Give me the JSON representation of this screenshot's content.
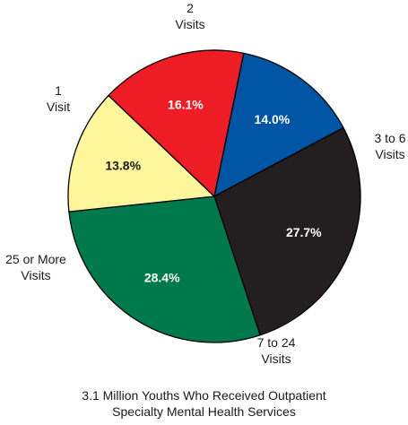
{
  "chart_data": {
    "type": "pie",
    "title": "",
    "slices": [
      {
        "label_lines": [
          "2",
          "Visits"
        ],
        "value": 14.0,
        "value_label": "14.0%",
        "color": "#0055a5",
        "text_color": "#ffffff"
      },
      {
        "label_lines": [
          "3 to 6",
          "Visits"
        ],
        "value": 27.7,
        "value_label": "27.7%",
        "color": "#231f20",
        "text_color": "#ffffff"
      },
      {
        "label_lines": [
          "7 to 24",
          "Visits"
        ],
        "value": 28.4,
        "value_label": "28.4%",
        "color": "#007a4d",
        "text_color": "#ffffff"
      },
      {
        "label_lines": [
          "25 or More",
          "Visits"
        ],
        "value": 13.8,
        "value_label": "13.8%",
        "color": "#fff59b",
        "text_color": "#1a1a1a"
      },
      {
        "label_lines": [
          "1",
          "Visit"
        ],
        "value": 16.1,
        "value_label": "16.1%",
        "color": "#ee1c25",
        "text_color": "#ffffff"
      }
    ],
    "caption": [
      "3.1 Million Youths Who Received Outpatient",
      "Specialty Mental Health Services"
    ]
  }
}
